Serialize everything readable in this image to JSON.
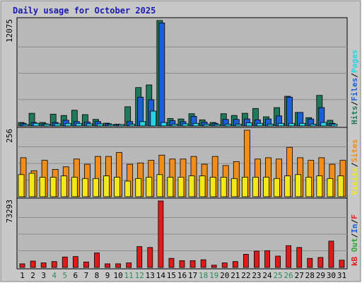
{
  "chart_data": {
    "type": "bar",
    "title": "Daily usage for October 2025",
    "days": [
      "1",
      "2",
      "3",
      "4",
      "5",
      "6",
      "7",
      "8",
      "9",
      "10",
      "11",
      "12",
      "13",
      "14",
      "15",
      "16",
      "17",
      "18",
      "19",
      "20",
      "21",
      "22",
      "23",
      "24",
      "25",
      "26",
      "27",
      "28",
      "29",
      "30",
      "31"
    ],
    "weekend_days": [
      "4",
      "5",
      "11",
      "12",
      "18",
      "19",
      "25",
      "26"
    ],
    "colors": {
      "background": "#ffffff",
      "frame": "#c8c8c8",
      "panel": "#b8b8b8",
      "title": "#1a1ab3",
      "weekday_label": "#000000",
      "weekend_label": "#2e8b57",
      "hits": "#1f7a5c",
      "files": "#1a5fd8",
      "pages": "#2ad3e3",
      "visits": "#f2e81a",
      "sites": "#f28c1a",
      "kb_in": "#1a5fd8",
      "kb_out": "#2aa82a",
      "kb_f": "#e01a1a",
      "slash": "#000000"
    },
    "panels": [
      {
        "id": "hits-files-pages",
        "max_label": "12075",
        "max": 12075,
        "legend": [
          {
            "label": "Hits",
            "color": "#1f7a5c"
          },
          {
            "label": "Files",
            "color": "#1a5fd8"
          },
          {
            "label": "Pages",
            "color": "#2ad3e3"
          }
        ],
        "series": [
          {
            "name": "Hits",
            "color": "#1f7a5c",
            "values": [
              400,
              1450,
              400,
              1350,
              1200,
              1800,
              1300,
              750,
              320,
              200,
              2200,
              4400,
              4700,
              12075,
              850,
              800,
              1400,
              700,
              400,
              1400,
              1200,
              1450,
              2000,
              1050,
              2100,
              3400,
              1550,
              950,
              3500,
              650,
              0
            ]
          },
          {
            "name": "Files",
            "color": "#1a5fd8",
            "values": [
              300,
              400,
              250,
              400,
              650,
              500,
              450,
              500,
              250,
              150,
              500,
              3300,
              3000,
              11800,
              600,
              500,
              1100,
              450,
              300,
              750,
              750,
              800,
              700,
              800,
              1150,
              3300,
              1550,
              800,
              2100,
              300,
              0
            ]
          },
          {
            "name": "Pages",
            "color": "#2ad3e3",
            "values": [
              150,
              300,
              200,
              250,
              300,
              300,
              250,
              250,
              100,
              100,
              200,
              500,
              1700,
              400,
              200,
              250,
              300,
              200,
              150,
              200,
              200,
              350,
              300,
              200,
              300,
              300,
              300,
              200,
              400,
              200,
              0
            ]
          }
        ]
      },
      {
        "id": "visits-sites",
        "max_label": "256",
        "max": 256,
        "legend": [
          {
            "label": "Visits",
            "color": "#f2e81a"
          },
          {
            "label": "Sites",
            "color": "#f28c1a"
          }
        ],
        "series": [
          {
            "name": "Sites",
            "color": "#f28c1a",
            "values": [
              150,
              100,
              140,
              105,
              115,
              145,
              125,
              155,
              155,
              170,
              125,
              130,
              140,
              160,
              145,
              145,
              155,
              125,
              155,
              120,
              135,
              256,
              145,
              150,
              145,
              190,
              150,
              140,
              150,
              125,
              140
            ]
          },
          {
            "name": "Visits",
            "color": "#f2e81a",
            "values": [
              85,
              90,
              75,
              75,
              80,
              75,
              70,
              70,
              80,
              75,
              60,
              70,
              75,
              85,
              75,
              75,
              80,
              80,
              75,
              75,
              70,
              75,
              75,
              75,
              70,
              80,
              85,
              75,
              80,
              70,
              80
            ]
          }
        ]
      },
      {
        "id": "kbf-in-out",
        "max_label": "73293",
        "max": 73293,
        "legend": [
          {
            "label": "Out",
            "color": "#2aa82a"
          },
          {
            "label": "In",
            "color": "#1a5fd8"
          },
          {
            "label": "F",
            "color": "#e01a1a"
          }
        ],
        "series": [
          {
            "name": "KB F",
            "color": "#e01a1a",
            "values": [
              4000,
              7000,
              5000,
              6500,
              11500,
              12000,
              6000,
              16000,
              4000,
              4000,
              5000,
              23000,
              22000,
              73293,
              10000,
              7500,
              7500,
              8500,
              2500,
              5000,
              6500,
              14500,
              18000,
              18500,
              12500,
              24000,
              22000,
              10000,
              11000,
              29000,
              8000
            ]
          }
        ]
      }
    ]
  }
}
